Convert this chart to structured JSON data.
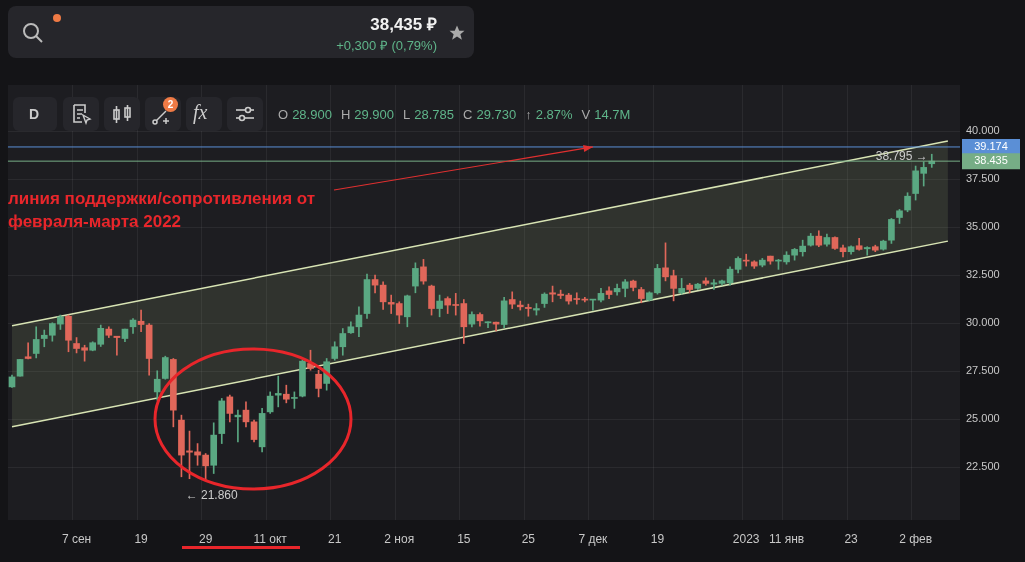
{
  "chart_data": {
    "type": "candlestick",
    "categories": [
      null,
      null,
      null,
      null,
      null,
      null,
      null,
      null,
      "7 сен",
      null,
      null,
      null,
      null,
      null,
      null,
      null,
      "19",
      null,
      null,
      null,
      null,
      null,
      null,
      null,
      "29",
      null,
      null,
      null,
      null,
      null,
      null,
      null,
      "11 окт",
      null,
      null,
      null,
      null,
      null,
      null,
      null,
      "21",
      null,
      null,
      null,
      null,
      null,
      null,
      null,
      "2 ноя",
      null,
      null,
      null,
      null,
      null,
      null,
      null,
      "15",
      null,
      null,
      null,
      null,
      null,
      null,
      null,
      "25",
      null,
      null,
      null,
      null,
      null,
      null,
      null,
      "7 дек",
      null,
      null,
      null,
      null,
      null,
      null,
      null,
      "19",
      null,
      null,
      null,
      null,
      null,
      null,
      null,
      null,
      null,
      null,
      "2023",
      null,
      null,
      null,
      null,
      "11 янв",
      null,
      null,
      null,
      null,
      null,
      null,
      null,
      "23",
      null,
      null,
      null,
      null,
      null,
      null,
      null,
      "2 фев",
      null,
      null,
      null,
      null,
      null
    ],
    "ohlc": [
      [
        26.68,
        27.29,
        26.65,
        27.2
      ],
      [
        27.24,
        28.11,
        27.24,
        28.11
      ],
      [
        28.25,
        28.98,
        28.14,
        28.16
      ],
      [
        28.42,
        29.81,
        28.19,
        29.15
      ],
      [
        29.2,
        29.64,
        28.77,
        29.37
      ],
      [
        29.37,
        30.02,
        29.06,
        29.98
      ],
      [
        29.95,
        30.42,
        29.67,
        30.33
      ],
      [
        30.36,
        30.42,
        28.51,
        29.11
      ],
      [
        28.94,
        29.25,
        28.45,
        28.68
      ],
      [
        28.72,
        28.85,
        28.02,
        28.59
      ],
      [
        28.59,
        29.03,
        28.56,
        28.98
      ],
      [
        28.9,
        29.9,
        28.785,
        29.73
      ],
      [
        29.69,
        29.81,
        29.25,
        29.37
      ],
      [
        29.32,
        29.32,
        28.33,
        29.25
      ],
      [
        29.2,
        29.69,
        29.03,
        29.69
      ],
      [
        29.81,
        30.24,
        29.46,
        30.16
      ],
      [
        30.1,
        30.68,
        29.55,
        29.93
      ],
      [
        29.9,
        29.98,
        27.29,
        28.16
      ],
      [
        26.42,
        27.52,
        25.99,
        27.08
      ],
      [
        27.12,
        28.28,
        27.08,
        28.21
      ],
      [
        28.11,
        28.16,
        24.6,
        25.47
      ],
      [
        24.95,
        25.21,
        22.0,
        23.13
      ],
      [
        23.35,
        24.38,
        21.9,
        23.28
      ],
      [
        23.3,
        23.73,
        22.6,
        23.13
      ],
      [
        23.13,
        23.21,
        21.86,
        22.57
      ],
      [
        22.6,
        24.81,
        22.17,
        24.17
      ],
      [
        24.25,
        26.08,
        23.73,
        25.95
      ],
      [
        26.16,
        26.25,
        24.86,
        25.3
      ],
      [
        25.12,
        25.47,
        23.82,
        25.21
      ],
      [
        25.47,
        25.9,
        24.6,
        24.86
      ],
      [
        24.86,
        24.95,
        23.82,
        23.94
      ],
      [
        23.56,
        25.56,
        23.3,
        25.3
      ],
      [
        25.38,
        26.42,
        25.3,
        26.2
      ],
      [
        26.25,
        27.24,
        25.64,
        26.34
      ],
      [
        26.3,
        26.77,
        25.85,
        26.04
      ],
      [
        26.08,
        26.42,
        25.56,
        26.13
      ],
      [
        26.2,
        28.07,
        26.16,
        28.02
      ],
      [
        27.9,
        28.59,
        27.55,
        27.64
      ],
      [
        27.34,
        27.55,
        26.16,
        26.6
      ],
      [
        26.86,
        28.16,
        26.51,
        27.99
      ],
      [
        28.16,
        29.03,
        28.07,
        28.77
      ],
      [
        28.77,
        29.72,
        28.33,
        29.46
      ],
      [
        29.5,
        30.07,
        29.46,
        29.81
      ],
      [
        29.81,
        30.85,
        29.29,
        30.42
      ],
      [
        30.5,
        32.55,
        30.24,
        32.27
      ],
      [
        32.27,
        32.5,
        31.58,
        31.98
      ],
      [
        31.98,
        32.15,
        30.71,
        31.11
      ],
      [
        31.08,
        31.46,
        30.5,
        30.99
      ],
      [
        31.02,
        31.11,
        29.98,
        30.42
      ],
      [
        30.33,
        31.46,
        29.81,
        31.42
      ],
      [
        31.93,
        33.14,
        31.58,
        32.85
      ],
      [
        32.93,
        33.32,
        32.03,
        32.19
      ],
      [
        31.93,
        31.98,
        30.42,
        30.76
      ],
      [
        30.76,
        31.46,
        30.33,
        31.15
      ],
      [
        31.28,
        31.37,
        30.5,
        30.94
      ],
      [
        30.97,
        31.55,
        30.42,
        30.92
      ],
      [
        31.02,
        31.23,
        28.94,
        29.81
      ],
      [
        29.95,
        30.59,
        29.81,
        30.45
      ],
      [
        30.45,
        30.54,
        29.84,
        30.12
      ],
      [
        30.02,
        30.07,
        29.76,
        30.07
      ],
      [
        30.05,
        30.05,
        29.6,
        29.95
      ],
      [
        29.93,
        31.34,
        29.76,
        31.16
      ],
      [
        31.23,
        31.63,
        30.76,
        30.99
      ],
      [
        30.94,
        31.15,
        30.68,
        30.85
      ],
      [
        30.82,
        30.99,
        30.36,
        30.76
      ],
      [
        30.68,
        31.02,
        30.42,
        30.76
      ],
      [
        31.02,
        31.58,
        30.82,
        31.51
      ],
      [
        31.58,
        31.93,
        31.11,
        31.51
      ],
      [
        31.51,
        31.72,
        31.28,
        31.44
      ],
      [
        31.46,
        31.55,
        30.99,
        31.15
      ],
      [
        31.28,
        31.58,
        30.99,
        31.23
      ],
      [
        31.25,
        31.34,
        31.11,
        31.2
      ],
      [
        31.2,
        31.23,
        30.68,
        31.23
      ],
      [
        31.2,
        31.81,
        31.11,
        31.55
      ],
      [
        31.68,
        31.89,
        31.28,
        31.49
      ],
      [
        31.63,
        32.03,
        31.46,
        31.81
      ],
      [
        31.81,
        32.27,
        31.37,
        32.15
      ],
      [
        32.19,
        32.24,
        31.68,
        31.86
      ],
      [
        31.75,
        31.86,
        31.06,
        31.28
      ],
      [
        31.2,
        31.63,
        31.16,
        31.58
      ],
      [
        31.58,
        33.06,
        31.51,
        32.85
      ],
      [
        32.88,
        34.18,
        32.2,
        32.41
      ],
      [
        32.47,
        32.76,
        31.16,
        31.81
      ],
      [
        31.58,
        32.33,
        31.51,
        31.81
      ],
      [
        31.98,
        32.07,
        31.58,
        31.75
      ],
      [
        31.81,
        32.07,
        31.75,
        32.03
      ],
      [
        32.2,
        32.36,
        31.98,
        32.07
      ],
      [
        32.03,
        32.27,
        31.75,
        32.1
      ],
      [
        32.07,
        32.24,
        31.98,
        32.2
      ],
      [
        32.1,
        32.93,
        31.98,
        32.81
      ],
      [
        32.8,
        33.45,
        32.62,
        33.37
      ],
      [
        33.28,
        33.59,
        32.97,
        33.23
      ],
      [
        33.19,
        33.25,
        32.85,
        32.97
      ],
      [
        33.02,
        33.37,
        32.93,
        33.28
      ],
      [
        33.49,
        33.49,
        33.07,
        33.23
      ],
      [
        33.23,
        33.32,
        32.8,
        33.28
      ],
      [
        33.19,
        33.72,
        33.07,
        33.54
      ],
      [
        33.54,
        33.89,
        33.28,
        33.84
      ],
      [
        33.72,
        34.32,
        33.49,
        34.01
      ],
      [
        34.06,
        34.67,
        34.01,
        34.53
      ],
      [
        34.53,
        34.81,
        33.98,
        34.06
      ],
      [
        34.11,
        34.64,
        34.01,
        34.46
      ],
      [
        34.46,
        34.5,
        33.84,
        33.89
      ],
      [
        33.92,
        34.06,
        33.45,
        33.72
      ],
      [
        33.72,
        34.03,
        33.59,
        33.98
      ],
      [
        34.03,
        34.41,
        33.8,
        33.84
      ],
      [
        33.87,
        33.98,
        33.54,
        33.94
      ],
      [
        33.98,
        34.06,
        33.72,
        33.8
      ],
      [
        33.85,
        34.32,
        33.8,
        34.27
      ],
      [
        34.32,
        35.45,
        34.15,
        35.4
      ],
      [
        35.5,
        35.92,
        35.19,
        35.85
      ],
      [
        35.89,
        36.79,
        35.8,
        36.61
      ],
      [
        36.75,
        38.18,
        36.41,
        37.93
      ],
      [
        37.8,
        38.4,
        37.14,
        38.11
      ],
      [
        38.3,
        38.795,
        38.11,
        38.435
      ],
      null,
      null,
      null
    ],
    "series": [
      {
        "type": "line",
        "color": "#d8e4b4",
        "values": [
          29.86,
          null,
          null,
          null,
          null,
          null,
          null,
          null,
          null,
          null,
          null,
          null,
          null,
          null,
          null,
          null,
          null,
          null,
          null,
          null,
          null,
          null,
          null,
          null,
          null,
          null,
          null,
          null,
          null,
          null,
          null,
          null,
          null,
          null,
          null,
          null,
          null,
          null,
          null,
          null,
          null,
          null,
          null,
          null,
          null,
          null,
          null,
          null,
          null,
          null,
          null,
          null,
          null,
          null,
          null,
          null,
          null,
          null,
          null,
          null,
          null,
          null,
          null,
          null,
          null,
          null,
          null,
          null,
          null,
          null,
          null,
          null,
          null,
          null,
          null,
          null,
          null,
          null,
          null,
          null,
          null,
          null,
          null,
          null,
          null,
          null,
          null,
          null,
          null,
          null,
          null,
          null,
          null,
          null,
          null,
          null,
          null,
          null,
          null,
          null,
          null,
          null,
          null,
          null,
          null,
          null,
          null,
          null,
          null,
          null,
          null,
          null,
          null,
          null,
          null,
          null,
          39.48,
          null
        ]
      },
      {
        "type": "line",
        "color": "#d8e4b4",
        "upper": [
          29.86,
          null,
          null,
          null,
          null,
          null,
          null,
          null,
          null,
          null,
          null,
          null,
          null,
          null,
          null,
          null,
          null,
          null,
          null,
          null,
          null,
          null,
          null,
          null,
          null,
          null,
          null,
          null,
          null,
          null,
          null,
          null,
          null,
          null,
          null,
          null,
          null,
          null,
          null,
          null,
          null,
          null,
          null,
          null,
          null,
          null,
          null,
          null,
          null,
          null,
          null,
          null,
          null,
          null,
          null,
          null,
          null,
          null,
          null,
          null,
          null,
          null,
          null,
          null,
          null,
          null,
          null,
          null,
          null,
          null,
          null,
          null,
          null,
          null,
          null,
          null,
          null,
          null,
          null,
          null,
          null,
          null,
          null,
          null,
          null,
          null,
          null,
          null,
          null,
          null,
          null,
          null,
          null,
          null,
          null,
          null,
          null,
          null,
          null,
          null,
          null,
          null,
          null,
          null,
          null,
          null,
          null,
          null,
          null,
          null,
          null,
          null,
          null,
          null,
          null,
          null,
          39.48,
          null
        ],
        "lower": [
          24.6,
          null,
          null,
          null,
          null,
          null,
          null,
          null,
          null,
          null,
          null,
          null,
          null,
          null,
          null,
          null,
          null,
          null,
          null,
          null,
          null,
          null,
          null,
          null,
          null,
          null,
          null,
          null,
          null,
          null,
          null,
          null,
          null,
          null,
          null,
          null,
          null,
          null,
          null,
          null,
          null,
          null,
          null,
          null,
          null,
          null,
          null,
          null,
          null,
          null,
          null,
          null,
          null,
          null,
          null,
          null,
          null,
          null,
          null,
          null,
          null,
          null,
          null,
          null,
          null,
          null,
          null,
          null,
          null,
          null,
          null,
          null,
          null,
          null,
          null,
          null,
          null,
          null,
          null,
          null,
          null,
          null,
          null,
          null,
          null,
          null,
          null,
          null,
          null,
          null,
          null,
          null,
          null,
          null,
          null,
          null,
          null,
          null,
          null,
          null,
          null,
          null,
          null,
          null,
          null,
          null,
          null,
          null,
          null,
          null,
          null,
          null,
          null,
          null,
          null,
          null,
          34.27,
          null
        ],
        "values": [
          24.6,
          null,
          null,
          null,
          null,
          null,
          null,
          null,
          null,
          null,
          null,
          null,
          null,
          null,
          null,
          null,
          null,
          null,
          null,
          null,
          null,
          null,
          null,
          null,
          null,
          null,
          null,
          null,
          null,
          null,
          null,
          null,
          null,
          null,
          null,
          null,
          null,
          null,
          null,
          null,
          null,
          null,
          null,
          null,
          null,
          null,
          null,
          null,
          null,
          null,
          null,
          null,
          null,
          null,
          null,
          null,
          null,
          null,
          null,
          null,
          null,
          null,
          null,
          null,
          null,
          null,
          null,
          null,
          null,
          null,
          null,
          null,
          null,
          null,
          null,
          null,
          null,
          null,
          null,
          null,
          null,
          null,
          null,
          null,
          null,
          null,
          null,
          null,
          null,
          null,
          null,
          null,
          null,
          null,
          null,
          null,
          null,
          null,
          null,
          null,
          null,
          null,
          null,
          null,
          null,
          null,
          null,
          null,
          null,
          null,
          null,
          null,
          null,
          null,
          null,
          null,
          34.27,
          null
        ]
      }
    ],
    "ylim": [
      19.75,
      42.4
    ],
    "yticks": [
      {
        "value": 22.5,
        "label": "22.500"
      },
      {
        "value": 25,
        "label": "25.000"
      },
      {
        "value": 27.5,
        "label": "27.500"
      },
      {
        "value": 30,
        "label": "30.000"
      },
      {
        "value": 32.5,
        "label": "32.500"
      },
      {
        "value": 35,
        "label": "35.000"
      },
      {
        "value": 37.5,
        "label": "37.500"
      },
      {
        "value": 40,
        "label": "40.000"
      }
    ],
    "ref_lines": [
      {
        "axis": "y",
        "value": 39.174,
        "label": "39.174",
        "color": "#5b8fd6"
      },
      {
        "axis": "y",
        "value": 38.435,
        "label": "38.435",
        "color": "#76ad86"
      }
    ],
    "grid": true,
    "legend": false,
    "annotations": [
      {
        "text": "линия поддержки/сопротивления от февраля-марта 2022",
        "x": "7 дек",
        "y": 39.174
      },
      {
        "text": "38.795 →",
        "y": 38.795
      },
      "← 21.860",
      "38,435 ₽",
      "+0,300 ₽ (0,79%)",
      "O 28.900 H 29.900 L 28.785 C 29.730 ↑ 2.87% V 14.7M",
      "D",
      "2",
      "fx"
    ]
  }
}
